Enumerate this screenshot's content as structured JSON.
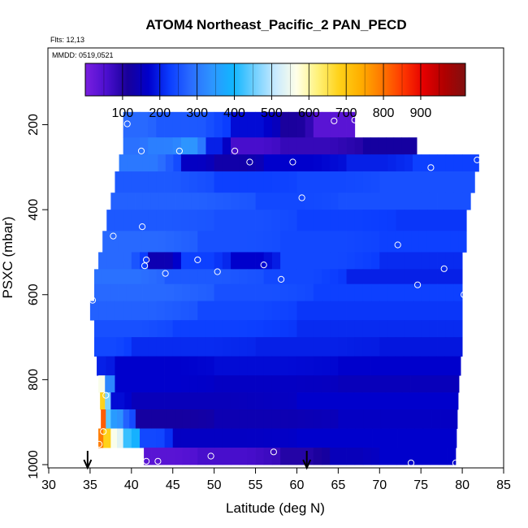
{
  "chart_data": {
    "type": "heatmap",
    "title": "ATOM4 Northeast_Pacific_2 PAN_PECD",
    "flights_label": "Flts: 12,13",
    "date_label": "MMDD: 0519,0521",
    "xlabel": "Latitude (deg N)",
    "ylabel": "PSXC (mbar)",
    "xlim": [
      30,
      85
    ],
    "ylim": [
      1000,
      0
    ],
    "xticks": [
      "30",
      "35",
      "40",
      "45",
      "50",
      "55",
      "60",
      "65",
      "70",
      "75",
      "80",
      "85"
    ],
    "yticks": [
      "200",
      "400",
      "600",
      "800",
      "1000"
    ],
    "colorbar": {
      "range": [
        0,
        1020
      ],
      "tick_labels": [
        "100",
        "200",
        "300",
        "400",
        "500",
        "600",
        "700",
        "800",
        "900"
      ],
      "colors": [
        "#7a1fe0",
        "#4b0fcf",
        "#18009a",
        "#0000cc",
        "#0b3dff",
        "#2a6cff",
        "#2d95ff",
        "#11b6ff",
        "#6fcfff",
        "#c8eaff",
        "#ffffe8",
        "#fff27a",
        "#ffd21a",
        "#ffb000",
        "#ff7a00",
        "#ff3a00",
        "#e60000",
        "#b00000",
        "#801010"
      ]
    },
    "bands": [
      {
        "p_top": 170,
        "p_bot": 230,
        "lat_start": 39.0,
        "lat_end": 67.0,
        "segments": [
          [
            39,
            43,
            280
          ],
          [
            43,
            52,
            260
          ],
          [
            52,
            58,
            180
          ],
          [
            58,
            62,
            110
          ],
          [
            62,
            67,
            40
          ]
        ]
      },
      {
        "p_top": 230,
        "p_bot": 270,
        "lat_start": 39.0,
        "lat_end": 74.5,
        "segments": [
          [
            39,
            42,
            290
          ],
          [
            42,
            46,
            310
          ],
          [
            46,
            49,
            340
          ],
          [
            49,
            52,
            200
          ],
          [
            52,
            58,
            60
          ],
          [
            58,
            68,
            80
          ],
          [
            68,
            74.5,
            120
          ]
        ]
      },
      {
        "p_top": 270,
        "p_bot": 310,
        "lat_start": 38.5,
        "lat_end": 82.0,
        "segments": [
          [
            38.5,
            46,
            300
          ],
          [
            46,
            50,
            160
          ],
          [
            50,
            56,
            130
          ],
          [
            56,
            66,
            170
          ],
          [
            66,
            74,
            200
          ],
          [
            74,
            82,
            230
          ]
        ]
      },
      {
        "p_top": 310,
        "p_bot": 360,
        "lat_start": 38.0,
        "lat_end": 81.5,
        "segments": [
          [
            38,
            50,
            260
          ],
          [
            50,
            60,
            230
          ],
          [
            60,
            70,
            240
          ],
          [
            70,
            81.5,
            250
          ]
        ]
      },
      {
        "p_top": 360,
        "p_bot": 400,
        "lat_start": 37.5,
        "lat_end": 81.0,
        "segments": [
          [
            37.5,
            55,
            270
          ],
          [
            55,
            65,
            240
          ],
          [
            65,
            81,
            250
          ]
        ]
      },
      {
        "p_top": 400,
        "p_bot": 450,
        "lat_start": 37.0,
        "lat_end": 80.5,
        "segments": [
          [
            37,
            50,
            260
          ],
          [
            50,
            60,
            250
          ],
          [
            60,
            72,
            230
          ],
          [
            72,
            80.5,
            220
          ]
        ]
      },
      {
        "p_top": 450,
        "p_bot": 500,
        "lat_start": 36.5,
        "lat_end": 80.5,
        "segments": [
          [
            36.5,
            48,
            280
          ],
          [
            48,
            58,
            250
          ],
          [
            58,
            70,
            240
          ],
          [
            70,
            80.5,
            230
          ]
        ]
      },
      {
        "p_top": 500,
        "p_bot": 540,
        "lat_start": 36.0,
        "lat_end": 80.0,
        "segments": [
          [
            36,
            42,
            280
          ],
          [
            42,
            46,
            140
          ],
          [
            46,
            52,
            230
          ],
          [
            52,
            58,
            170
          ],
          [
            58,
            70,
            240
          ],
          [
            70,
            80,
            210
          ]
        ]
      },
      {
        "p_top": 540,
        "p_bot": 575,
        "lat_start": 35.5,
        "lat_end": 80.0,
        "segments": [
          [
            35.5,
            44,
            290
          ],
          [
            44,
            56,
            260
          ],
          [
            56,
            66,
            240
          ],
          [
            66,
            80,
            200
          ]
        ]
      },
      {
        "p_top": 575,
        "p_bot": 615,
        "lat_start": 35.5,
        "lat_end": 80.0,
        "segments": [
          [
            35.5,
            50,
            280
          ],
          [
            50,
            62,
            250
          ],
          [
            62,
            80,
            230
          ]
        ]
      },
      {
        "p_top": 615,
        "p_bot": 660,
        "lat_start": 35.0,
        "lat_end": 80.0,
        "segments": [
          [
            35,
            48,
            270
          ],
          [
            48,
            60,
            240
          ],
          [
            60,
            80,
            220
          ]
        ]
      },
      {
        "p_top": 660,
        "p_bot": 700,
        "lat_start": 35.5,
        "lat_end": 80.0,
        "segments": [
          [
            35.5,
            45,
            250
          ],
          [
            45,
            60,
            230
          ],
          [
            60,
            80,
            210
          ]
        ]
      },
      {
        "p_top": 700,
        "p_bot": 745,
        "lat_start": 35.5,
        "lat_end": 80.0,
        "segments": [
          [
            35.5,
            40,
            240
          ],
          [
            40,
            55,
            210
          ],
          [
            55,
            70,
            200
          ],
          [
            70,
            80,
            190
          ]
        ]
      },
      {
        "p_top": 745,
        "p_bot": 790,
        "lat_start": 35.8,
        "lat_end": 79.8,
        "segments": [
          [
            35.8,
            38,
            200
          ],
          [
            38,
            50,
            170
          ],
          [
            50,
            65,
            180
          ],
          [
            65,
            79.8,
            170
          ]
        ]
      },
      {
        "p_top": 790,
        "p_bot": 830,
        "lat_start": 36.0,
        "lat_end": 79.6,
        "segments": [
          [
            36,
            36.8,
            560
          ],
          [
            36.8,
            38,
            320
          ],
          [
            38,
            50,
            170
          ],
          [
            50,
            65,
            160
          ],
          [
            65,
            79.6,
            150
          ]
        ]
      },
      {
        "p_top": 830,
        "p_bot": 870,
        "lat_start": 36.2,
        "lat_end": 79.5,
        "segments": [
          [
            36.2,
            36.8,
            680
          ],
          [
            36.8,
            37.5,
            460
          ],
          [
            37.5,
            40,
            180
          ],
          [
            40,
            60,
            150
          ],
          [
            60,
            79.5,
            170
          ]
        ]
      },
      {
        "p_top": 870,
        "p_bot": 915,
        "lat_start": 36.3,
        "lat_end": 79.4,
        "segments": [
          [
            36.3,
            36.9,
            820
          ],
          [
            36.9,
            37.5,
            440
          ],
          [
            37.5,
            39,
            350
          ],
          [
            39,
            40.5,
            270
          ],
          [
            40.5,
            50,
            120
          ],
          [
            50,
            65,
            140
          ],
          [
            65,
            79.4,
            160
          ]
        ]
      },
      {
        "p_top": 915,
        "p_bot": 960,
        "lat_start": 36.0,
        "lat_end": 79.3,
        "segments": [
          [
            36,
            36.6,
            790
          ],
          [
            36.6,
            37.5,
            680
          ],
          [
            37.5,
            39,
            560
          ],
          [
            39,
            41,
            420
          ],
          [
            41,
            45,
            240
          ],
          [
            45,
            60,
            160
          ],
          [
            60,
            79.3,
            170
          ]
        ]
      },
      {
        "p_top": 960,
        "p_bot": 1000,
        "lat_start": 41.5,
        "lat_end": 79.2,
        "segments": [
          [
            41.5,
            48,
            40
          ],
          [
            48,
            58,
            60
          ],
          [
            58,
            64,
            100
          ],
          [
            64,
            70,
            150
          ],
          [
            70,
            79.2,
            170
          ]
        ]
      }
    ],
    "points": [
      {
        "x": 39.5,
        "y": 198
      },
      {
        "x": 64.5,
        "y": 191
      },
      {
        "x": 67.0,
        "y": 189
      },
      {
        "x": 69.2,
        "y": 220
      },
      {
        "x": 41.2,
        "y": 262
      },
      {
        "x": 45.8,
        "y": 262
      },
      {
        "x": 52.5,
        "y": 262
      },
      {
        "x": 54.3,
        "y": 288
      },
      {
        "x": 59.5,
        "y": 288
      },
      {
        "x": 76.2,
        "y": 301
      },
      {
        "x": 81.8,
        "y": 283
      },
      {
        "x": 60.6,
        "y": 372
      },
      {
        "x": 41.3,
        "y": 440
      },
      {
        "x": 37.8,
        "y": 462
      },
      {
        "x": 72.2,
        "y": 483
      },
      {
        "x": 41.8,
        "y": 518
      },
      {
        "x": 41.6,
        "y": 532
      },
      {
        "x": 48.0,
        "y": 518
      },
      {
        "x": 44.1,
        "y": 550
      },
      {
        "x": 50.4,
        "y": 546
      },
      {
        "x": 56.0,
        "y": 530
      },
      {
        "x": 58.1,
        "y": 564
      },
      {
        "x": 77.8,
        "y": 539
      },
      {
        "x": 74.6,
        "y": 577
      },
      {
        "x": 80.2,
        "y": 600
      },
      {
        "x": 35.3,
        "y": 613
      },
      {
        "x": 36.9,
        "y": 837
      },
      {
        "x": 36.6,
        "y": 922
      },
      {
        "x": 36.1,
        "y": 952
      },
      {
        "x": 41.8,
        "y": 992
      },
      {
        "x": 43.2,
        "y": 992
      },
      {
        "x": 49.6,
        "y": 980
      },
      {
        "x": 57.2,
        "y": 970
      },
      {
        "x": 73.8,
        "y": 996
      },
      {
        "x": 79.2,
        "y": 996
      }
    ],
    "arrows_lat": [
      34.7,
      61.2
    ]
  }
}
